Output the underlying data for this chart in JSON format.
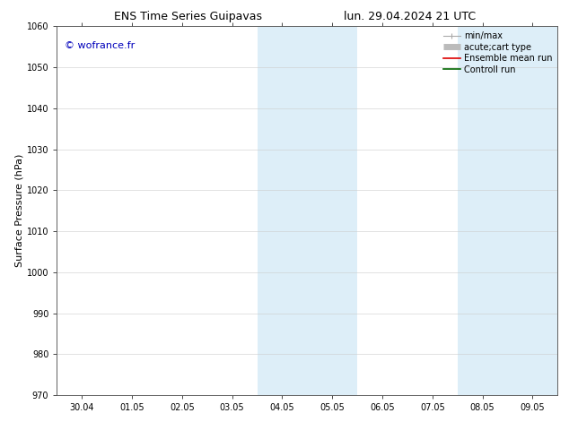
{
  "title_left": "ENS Time Series Guipavas",
  "title_right": "lun. 29.04.2024 21 UTC",
  "ylabel": "Surface Pressure (hPa)",
  "watermark": "© wofrance.fr",
  "watermark_color": "#0000bb",
  "xlim_start": -0.5,
  "xlim_end": 9.5,
  "ylim_bottom": 970,
  "ylim_top": 1060,
  "yticks": [
    970,
    980,
    990,
    1000,
    1010,
    1020,
    1030,
    1040,
    1050,
    1060
  ],
  "xtick_labels": [
    "30.04",
    "01.05",
    "02.05",
    "03.05",
    "04.05",
    "05.05",
    "06.05",
    "07.05",
    "08.05",
    "09.05"
  ],
  "xtick_positions": [
    0,
    1,
    2,
    3,
    4,
    5,
    6,
    7,
    8,
    9
  ],
  "shaded_regions": [
    {
      "x_start": 3.5,
      "x_end": 4.5,
      "color": "#ddeef8"
    },
    {
      "x_start": 4.5,
      "x_end": 5.5,
      "color": "#ddeef8"
    },
    {
      "x_start": 7.5,
      "x_end": 8.5,
      "color": "#ddeef8"
    },
    {
      "x_start": 8.5,
      "x_end": 9.5,
      "color": "#ddeef8"
    }
  ],
  "background_color": "#ffffff",
  "grid_color": "#cccccc",
  "legend_items": [
    {
      "label": "min/max",
      "color": "#aaaaaa",
      "lw": 0.8,
      "style": "minmax"
    },
    {
      "label": "acute;cart type",
      "color": "#bbbbbb",
      "lw": 5,
      "style": "thick"
    },
    {
      "label": "Ensemble mean run",
      "color": "#dd0000",
      "lw": 1.2,
      "style": "line"
    },
    {
      "label": "Controll run",
      "color": "#006600",
      "lw": 1.2,
      "style": "line"
    }
  ],
  "font_size_title": 9,
  "font_size_ticks": 7,
  "font_size_ylabel": 8,
  "font_size_legend": 7,
  "font_size_watermark": 8
}
